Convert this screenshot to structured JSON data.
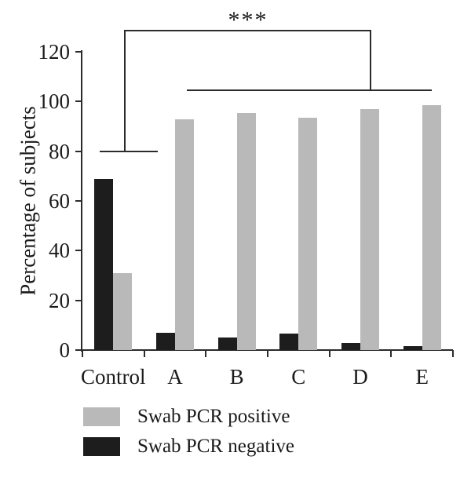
{
  "chart_data": {
    "type": "bar",
    "title": "",
    "xlabel": "",
    "ylabel": "Percentage of subjects",
    "ylim": [
      0,
      120
    ],
    "yticks": [
      0,
      20,
      40,
      60,
      80,
      100,
      120
    ],
    "categories": [
      "Control",
      "A",
      "B",
      "C",
      "D",
      "E"
    ],
    "series": [
      {
        "name": "Swab PCR negative",
        "side": "left",
        "color": "#1d1d1d",
        "values": [
          69,
          7,
          5,
          6.5,
          3,
          1.5
        ]
      },
      {
        "name": "Swab PCR positive",
        "side": "right",
        "color": "#b9b9b9",
        "values": [
          31,
          93,
          95.5,
          93.5,
          97,
          98.5
        ]
      }
    ],
    "legend": [
      {
        "label": "Swab PCR positive",
        "color": "#b9b9b9"
      },
      {
        "label": "Swab PCR negative",
        "color": "#1d1d1d"
      }
    ],
    "legend_position": "bottom-left",
    "grid": false,
    "axis_color": "#2b2b2b",
    "annotation": {
      "label": "***",
      "compares": [
        "Control",
        "A-E"
      ],
      "bracket_control_y": 80,
      "bracket_top_y": 128.5,
      "bracket_groups_y": 104.5
    }
  }
}
